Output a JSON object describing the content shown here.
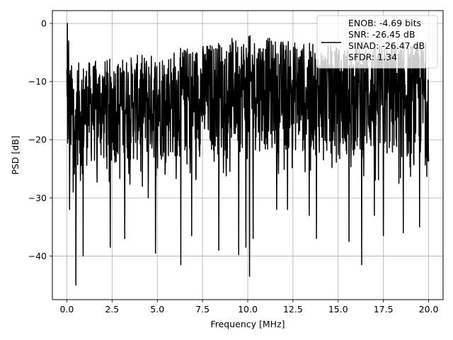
{
  "chart_data": {
    "type": "line",
    "xlabel": "Frequency [MHz]",
    "ylabel": "PSD [dB]",
    "xlim": [
      -0.8,
      20.8
    ],
    "ylim": [
      -47.5,
      2.2
    ],
    "xticks": [
      0.0,
      2.5,
      5.0,
      7.5,
      10.0,
      12.5,
      15.0,
      17.5,
      20.0
    ],
    "xtick_labels": [
      "0.0",
      "2.5",
      "5.0",
      "7.5",
      "10.0",
      "12.5",
      "15.0",
      "17.5",
      "20.0"
    ],
    "yticks": [
      0,
      -10,
      -20,
      -30,
      -40
    ],
    "ytick_labels": [
      "0",
      "−10",
      "−20",
      "−30",
      "−40"
    ],
    "grid": true,
    "legend_position": "top-right",
    "series": [
      {
        "name": "ENOB: -4.69 bits\nSNR: -26.45 dB\nSINAD: -26.47 dB\nSFDR: 1.34",
        "color": "#000000",
        "x_range": [
          0,
          20
        ],
        "noise_band_upper": [
          -7,
          -5,
          -2,
          -4,
          -3
        ],
        "noise_band_lower": [
          -25,
          -24,
          -22,
          -23,
          -24
        ],
        "x": [
          0.0,
          0.03,
          0.06,
          0.1,
          0.15,
          0.35,
          0.5,
          0.75,
          0.9,
          2.4,
          3.2,
          4.5,
          4.9,
          6.3,
          6.9,
          8.4,
          9.5,
          9.9,
          10.1,
          10.3,
          11.6,
          12.2,
          13.4,
          13.8,
          15.6,
          16.3,
          17.0,
          17.5,
          18.6,
          19.5
        ],
        "y": [
          -8,
          0,
          -13,
          -3,
          -32,
          -29,
          -45,
          -27,
          -40,
          -38.5,
          -37,
          -30,
          -39.5,
          -41.5,
          -36.5,
          -39,
          -39.8,
          -38.5,
          -43.5,
          -37,
          -32,
          -32,
          -33,
          -37,
          -37.5,
          -41.5,
          -33,
          -36.5,
          -36,
          -35
        ]
      }
    ]
  }
}
